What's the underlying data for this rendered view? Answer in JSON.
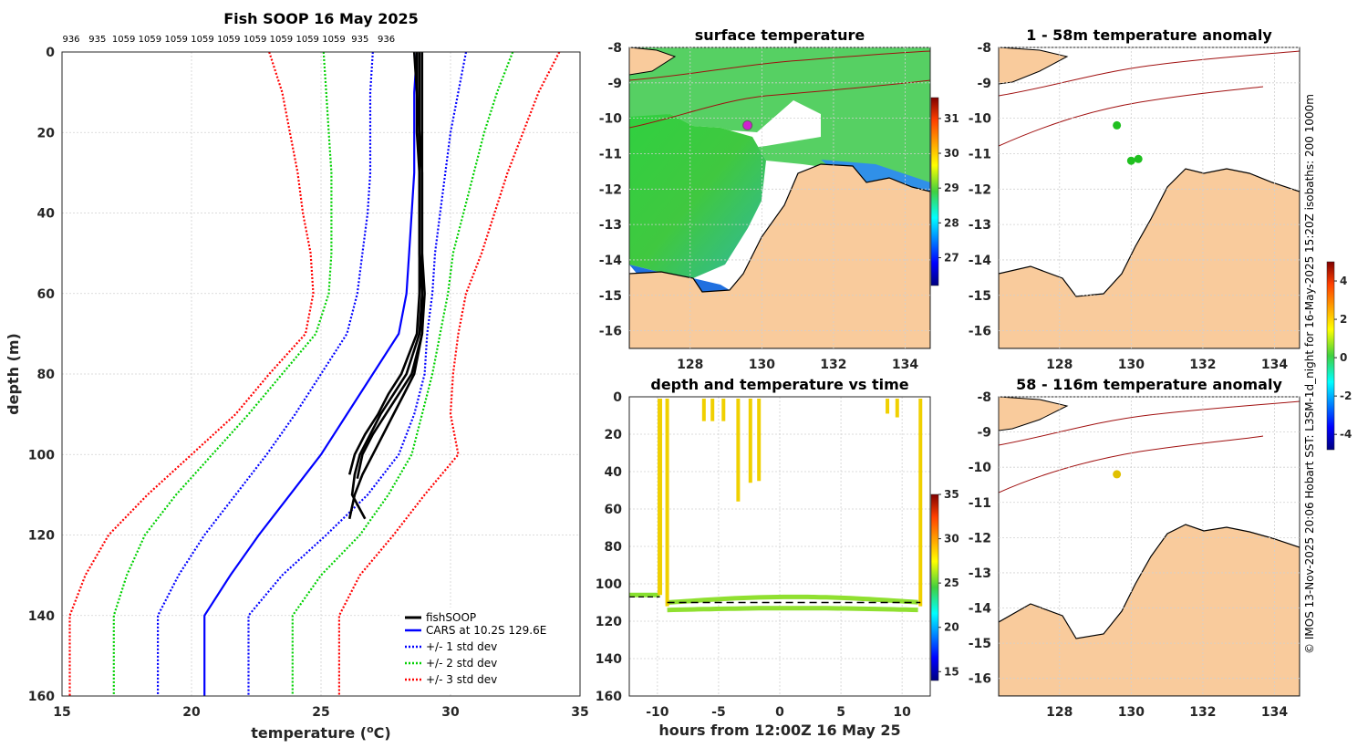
{
  "chart_data": [
    {
      "type": "line",
      "title": "Fish SOOP 16 May 2025",
      "top_counts": [
        "936",
        "935",
        "1059",
        "1059",
        "1059",
        "1059",
        "1059",
        "1059",
        "1059",
        "1059",
        "1059",
        "935",
        "936"
      ],
      "xlabel": "temperature (",
      "xlabel_sup": "o",
      "xlabel_tail": "C)",
      "ylabel": "depth (m)",
      "xlim": [
        15,
        35
      ],
      "ylim": [
        0,
        160
      ],
      "xticks": [
        "15",
        "20",
        "25",
        "30",
        "35"
      ],
      "yticks": [
        "0",
        "20",
        "40",
        "60",
        "80",
        "100",
        "120",
        "140",
        "160"
      ],
      "legend": [
        "fishSOOP",
        "CARS at 10.2S 129.6E",
        "+/- 1 std dev",
        "+/- 2 std dev",
        "+/- 3 std dev"
      ],
      "depth": [
        0,
        10,
        20,
        30,
        40,
        50,
        60,
        70,
        80,
        90,
        100,
        110,
        120,
        130,
        140,
        160
      ],
      "series": [
        {
          "name": "CARS mean",
          "color": "#0000ff",
          "dash": "",
          "t": [
            28.7,
            28.6,
            28.6,
            28.6,
            28.5,
            28.4,
            28.3,
            28.0,
            27.0,
            26.0,
            25.0,
            23.8,
            22.6,
            21.5,
            20.5,
            20.5
          ]
        },
        {
          "name": "-1 std",
          "color": "#0000ff",
          "dash": "2,2",
          "t": [
            27.0,
            26.9,
            26.9,
            26.9,
            26.8,
            26.6,
            26.4,
            26.0,
            25.0,
            24.0,
            22.9,
            21.7,
            20.5,
            19.5,
            18.7,
            18.7
          ]
        },
        {
          "name": "+1 std",
          "color": "#0000ff",
          "dash": "2,2",
          "t": [
            30.6,
            30.3,
            30.0,
            29.8,
            29.6,
            29.4,
            29.3,
            29.1,
            29.0,
            28.6,
            28.0,
            26.8,
            25.2,
            23.5,
            22.2,
            22.2
          ]
        },
        {
          "name": "-2 std",
          "color": "#00d000",
          "dash": "2,2",
          "t": [
            25.1,
            25.2,
            25.3,
            25.4,
            25.4,
            25.4,
            25.3,
            24.8,
            23.5,
            22.2,
            20.8,
            19.4,
            18.2,
            17.5,
            17.0,
            17.0
          ]
        },
        {
          "name": "+2 std",
          "color": "#00d000",
          "dash": "2,2",
          "t": [
            32.4,
            31.8,
            31.3,
            30.9,
            30.5,
            30.1,
            29.9,
            29.6,
            29.3,
            28.9,
            28.5,
            27.6,
            26.5,
            25.0,
            23.9,
            23.9
          ]
        },
        {
          "name": "-3 std",
          "color": "#ff0000",
          "dash": "2,2",
          "t": [
            23.0,
            23.5,
            23.8,
            24.1,
            24.3,
            24.6,
            24.7,
            24.4,
            23.0,
            21.7,
            20.0,
            18.3,
            16.8,
            15.9,
            15.3,
            15.3
          ]
        },
        {
          "name": "+3 std",
          "color": "#ff0000",
          "dash": "2,2",
          "t": [
            34.2,
            33.4,
            32.8,
            32.2,
            31.7,
            31.2,
            30.6,
            30.3,
            30.1,
            30.0,
            30.3,
            29.0,
            27.8,
            26.5,
            25.7,
            25.7
          ]
        }
      ],
      "fishsoop_profiles": [
        {
          "d": [
            0,
            10,
            20,
            30,
            40,
            50,
            60,
            70,
            80,
            85,
            90,
            95,
            100,
            105,
            110,
            116
          ],
          "t": [
            28.7,
            28.7,
            28.8,
            28.8,
            28.8,
            28.8,
            28.9,
            28.9,
            28.6,
            28.2,
            27.8,
            27.4,
            27.0,
            26.6,
            26.3,
            26.1
          ]
        },
        {
          "d": [
            0,
            10,
            20,
            30,
            40,
            50,
            60,
            70,
            80,
            85,
            90,
            95,
            100,
            105,
            110,
            116
          ],
          "t": [
            28.8,
            28.8,
            28.8,
            28.9,
            28.9,
            28.9,
            28.9,
            28.8,
            28.3,
            27.8,
            27.3,
            26.9,
            26.5,
            26.3,
            26.2,
            26.7
          ]
        },
        {
          "d": [
            0,
            10,
            20,
            30,
            40,
            50,
            60,
            70,
            80,
            85,
            90,
            95,
            100,
            105
          ],
          "t": [
            28.6,
            28.7,
            28.7,
            28.8,
            28.8,
            28.8,
            28.8,
            28.7,
            28.1,
            27.6,
            27.2,
            26.7,
            26.3,
            26.1
          ]
        },
        {
          "d": [
            0,
            10,
            20,
            30,
            40,
            50,
            60,
            70,
            80,
            85,
            90,
            95,
            100,
            106
          ],
          "t": [
            28.9,
            28.9,
            28.9,
            28.9,
            28.9,
            28.9,
            29.0,
            28.9,
            28.5,
            28.0,
            27.5,
            27.0,
            26.6,
            26.4
          ]
        }
      ]
    },
    {
      "type": "heatmap",
      "title": "surface temperature",
      "xticks": [
        "128",
        "130",
        "132",
        "134"
      ],
      "yticks": [
        "-8",
        "-9",
        "-10",
        "-11",
        "-12",
        "-13",
        "-14",
        "-15",
        "-16"
      ],
      "xlim": [
        126.3,
        134.7
      ],
      "ylim": [
        -16.5,
        -8
      ],
      "colorbar_ticks": [
        "31",
        "30",
        "29",
        "28",
        "27"
      ],
      "colorbar_range": [
        26.2,
        31.6
      ],
      "marker": {
        "lon": 129.6,
        "lat": -10.2,
        "color": "#d020d0"
      }
    },
    {
      "type": "scatter",
      "title": "depth and temperature vs time",
      "xlabel": "hours from 12:00Z 16 May 25",
      "xticks": [
        "-10",
        "-5",
        "0",
        "5",
        "10"
      ],
      "yticks": [
        "0",
        "20",
        "40",
        "60",
        "80",
        "100",
        "120",
        "140",
        "160"
      ],
      "xlim": [
        -12.3,
        12.3
      ],
      "ylim": [
        0,
        160
      ],
      "colorbar_ticks": [
        "35",
        "30",
        "25",
        "20",
        "15"
      ],
      "colorbar_range": [
        14,
        35
      ],
      "casts": [
        {
          "h": -9.2,
          "max": 112
        },
        {
          "h": -6.2,
          "max": 13
        },
        {
          "h": -5.5,
          "max": 13
        },
        {
          "h": -4.6,
          "max": 13
        },
        {
          "h": -3.4,
          "max": 56
        },
        {
          "h": -2.4,
          "max": 46
        },
        {
          "h": -1.7,
          "max": 45
        },
        {
          "h": 8.8,
          "max": 9
        },
        {
          "h": 9.6,
          "max": 11
        },
        {
          "h": 11.5,
          "max": 112
        }
      ],
      "bottom_line": {
        "d": 110
      }
    },
    {
      "type": "heatmap",
      "title": "1 - 58m temperature anomaly",
      "xticks": [
        "128",
        "130",
        "132",
        "134"
      ],
      "yticks": [
        "-8",
        "-9",
        "-10",
        "-11",
        "-12",
        "-13",
        "-14",
        "-15",
        "-16"
      ],
      "points": [
        {
          "lon": 129.6,
          "lat": -10.2,
          "color": "#20c020"
        },
        {
          "lon": 130.0,
          "lat": -11.2,
          "color": "#20c020"
        },
        {
          "lon": 130.2,
          "lat": -11.15,
          "color": "#20c020"
        }
      ]
    },
    {
      "type": "heatmap",
      "title": "58 - 116m temperature anomaly",
      "xticks": [
        "128",
        "130",
        "132",
        "134"
      ],
      "yticks": [
        "-8",
        "-9",
        "-10",
        "-11",
        "-12",
        "-13",
        "-14",
        "-15",
        "-16"
      ],
      "points": [
        {
          "lon": 129.6,
          "lat": -10.2,
          "color": "#e0c000"
        }
      ],
      "colorbar_ticks": [
        "4",
        "2",
        "0",
        "-2",
        "-4"
      ],
      "colorbar_range": [
        -4.8,
        5
      ]
    }
  ],
  "footer": {
    "credit": "© IMOS 13-Nov-2025 20:06 Hobart SST: L3SM-1d_night for 16-May-2025 15:20Z isobaths: 200  1000m"
  }
}
